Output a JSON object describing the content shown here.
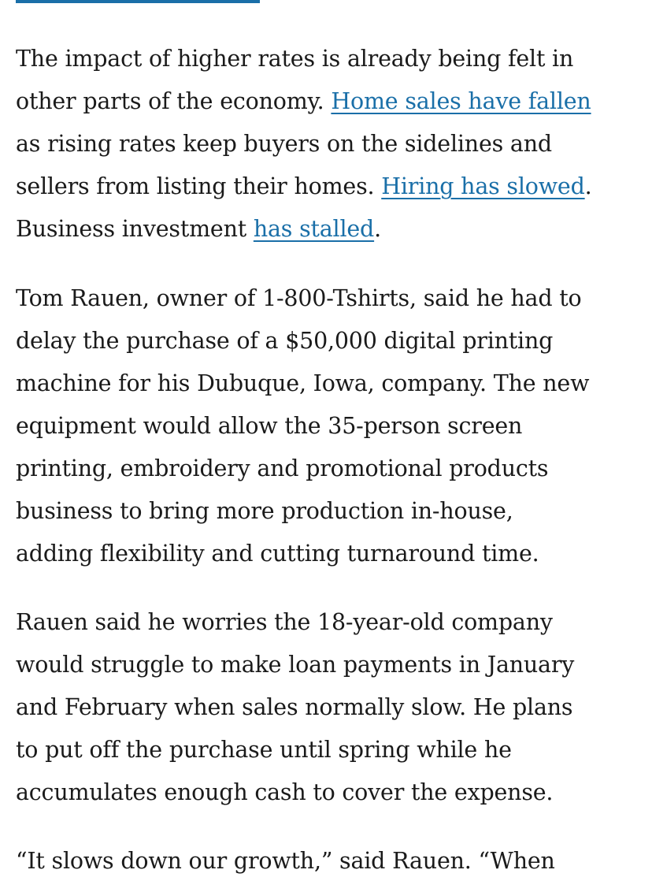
{
  "paragraphs": [
    {
      "lines": [
        [
          {
            "text": "The impact of higher rates is already being felt in"
          }
        ],
        [
          {
            "text": "other parts of the economy. "
          },
          {
            "text": "Home sales have fallen",
            "link": true
          }
        ],
        [
          {
            "text": "as rising rates keep buyers on the sidelines and"
          }
        ],
        [
          {
            "text": "sellers from listing their homes. "
          },
          {
            "text": "Hiring has slowed",
            "link": true
          },
          {
            "text": "."
          }
        ],
        [
          {
            "text": "Business investment "
          },
          {
            "text": "has stalled",
            "link": true
          },
          {
            "text": "."
          }
        ]
      ]
    },
    {
      "lines": [
        [
          {
            "text": "Tom Rauen, owner of 1-800-Tshirts, said he had to"
          }
        ],
        [
          {
            "text": "delay the purchase of a $50,000 digital printing"
          }
        ],
        [
          {
            "text": "machine for his Dubuque, Iowa, company. The new"
          }
        ],
        [
          {
            "text": "equipment would allow the 35-person screen"
          }
        ],
        [
          {
            "text": "printing, embroidery and promotional products"
          }
        ],
        [
          {
            "text": "business to bring more production in-house,"
          }
        ],
        [
          {
            "text": "adding flexibility and cutting turnaround time."
          }
        ]
      ]
    },
    {
      "lines": [
        [
          {
            "text": "Rauen said he worries the 18-year-old company"
          }
        ],
        [
          {
            "text": "would struggle to make loan payments in January"
          }
        ],
        [
          {
            "text": "and February when sales normally slow. He plans"
          }
        ],
        [
          {
            "text": "to put off the purchase until spring while he"
          }
        ],
        [
          {
            "text": "accumulates enough cash to cover the expense."
          }
        ]
      ]
    },
    {
      "lines": [
        [
          {
            "text": "“It slows down our growth,” said Rauen. “When"
          }
        ]
      ]
    }
  ],
  "colors": {
    "text": "#1a1a1a",
    "link": "#1a6fa8",
    "background": "#ffffff"
  }
}
